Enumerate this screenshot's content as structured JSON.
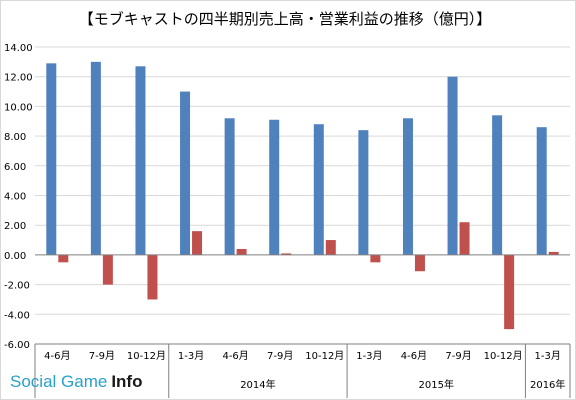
{
  "chart_data": {
    "type": "bar",
    "title": "【モブキャストの四半期別売上高・営業利益の推移（億円）】",
    "xlabel": "",
    "ylabel": "",
    "ylim": [
      -6,
      14
    ],
    "yticks": [
      "14.00",
      "12.00",
      "10.00",
      "8.00",
      "6.00",
      "4.00",
      "2.00",
      "0.00",
      "-2.00",
      "-4.00",
      "-6.00"
    ],
    "grid": true,
    "legend": "none",
    "categories": [
      "4-6月",
      "7-9月",
      "10-12月",
      "1-3月",
      "4-6月",
      "7-9月",
      "10-12月",
      "1-3月",
      "4-6月",
      "7-9月",
      "10-12月",
      "1-3月"
    ],
    "year_groups": [
      {
        "label": "",
        "count": 3
      },
      {
        "label": "2014年",
        "count": 4
      },
      {
        "label": "2015年",
        "count": 4
      },
      {
        "label": "2016年",
        "count": 1
      }
    ],
    "series": [
      {
        "values": [
          12.9,
          13.0,
          12.7,
          11.0,
          9.2,
          9.1,
          8.8,
          8.4,
          9.2,
          12.0,
          9.4,
          8.6
        ]
      },
      {
        "values": [
          -0.5,
          -2.0,
          -3.0,
          1.6,
          0.4,
          0.1,
          1.0,
          -0.5,
          -1.1,
          2.2,
          -5.0,
          0.2
        ]
      }
    ],
    "colors": [
      "#4f81bd",
      "#c0504d"
    ]
  },
  "watermark": {
    "part1": "Social Game",
    "part2": "Info"
  }
}
